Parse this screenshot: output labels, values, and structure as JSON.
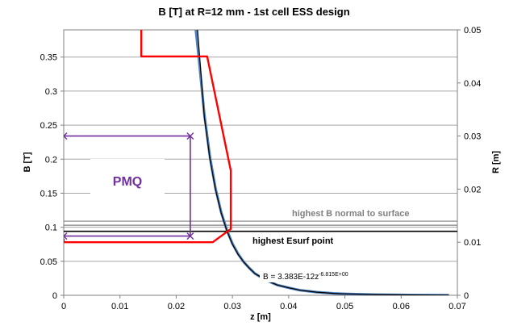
{
  "chart_data": {
    "type": "line",
    "title": "B [T] at R=12 mm - 1st cell ESS design",
    "xlabel": "z [m]",
    "ylabel": "B [T]",
    "y2label": "R [m]",
    "xlim": [
      0,
      0.07
    ],
    "ylim": [
      0,
      0.39
    ],
    "y2lim": [
      0,
      0.05
    ],
    "x_ticks": [
      "0",
      "0.01",
      "0.02",
      "0.03",
      "0.04",
      "0.05",
      "0.06",
      "0.07"
    ],
    "x_tick_values": [
      0,
      0.01,
      0.02,
      0.03,
      0.04,
      0.05,
      0.06,
      0.07
    ],
    "y_ticks": [
      "0",
      "0.05",
      "0.1",
      "0.15",
      "0.2",
      "0.25",
      "0.3",
      "0.35"
    ],
    "y_tick_values": [
      0,
      0.05,
      0.1,
      0.15,
      0.2,
      0.25,
      0.3,
      0.35
    ],
    "y2_ticks": [
      "0",
      "0.01",
      "0.02",
      "0.03",
      "0.04",
      "0.05"
    ],
    "y2_tick_values": [
      0,
      0.01,
      0.02,
      0.03,
      0.04,
      0.05
    ],
    "grid": "horizontal",
    "series": [
      {
        "role": "field",
        "axis": "left",
        "color": "#4f81bd",
        "x": [
          0.0235,
          0.024,
          0.025,
          0.026,
          0.027,
          0.028,
          0.029,
          0.03,
          0.031,
          0.032,
          0.033,
          0.034,
          0.035,
          0.036,
          0.038,
          0.04,
          0.042,
          0.045,
          0.048,
          0.05,
          0.055,
          0.06,
          0.065,
          0.0685
        ],
        "y": [
          0.39,
          0.351,
          0.266,
          0.203,
          0.157,
          0.122,
          0.096,
          0.076,
          0.061,
          0.049,
          0.04,
          0.032,
          0.027,
          0.022,
          0.015,
          0.011,
          0.0075,
          0.0046,
          0.0029,
          0.0021,
          0.0011,
          0.0006,
          0.0003,
          0.0002
        ]
      },
      {
        "role": "fit",
        "axis": "left",
        "color": "#000000",
        "x": [
          0.0238,
          0.025,
          0.026,
          0.027,
          0.028,
          0.029,
          0.03,
          0.031,
          0.032,
          0.033,
          0.034,
          0.035,
          0.036,
          0.038,
          0.04,
          0.042,
          0.045,
          0.048,
          0.05,
          0.055,
          0.06,
          0.065,
          0.0685
        ],
        "y": [
          0.39,
          0.262,
          0.2,
          0.155,
          0.121,
          0.095,
          0.075,
          0.06,
          0.049,
          0.04,
          0.032,
          0.027,
          0.022,
          0.015,
          0.011,
          0.0075,
          0.0046,
          0.0029,
          0.0021,
          0.0011,
          0.0006,
          0.0003,
          0.0002
        ]
      },
      {
        "role": "cavity profile",
        "axis": "right",
        "color": "#ff0000",
        "x": [
          0.0138,
          0.0138,
          0.0255,
          0.0297,
          0.0297,
          0.0265,
          0,
          0
        ],
        "y": [
          0.05,
          0.045,
          0.045,
          0.0235,
          0.0125,
          0.01,
          0.01,
          0.0107
        ]
      },
      {
        "role": "PMQ box",
        "axis": "left",
        "color": "#7030a0",
        "x": [
          0,
          0.0225,
          0.0225,
          0
        ],
        "y": [
          0.234,
          0.234,
          0.087,
          0.087
        ]
      }
    ],
    "hlines": [
      {
        "axis": "left",
        "y": 0.109,
        "color": "#808080"
      },
      {
        "axis": "left",
        "y": 0.103,
        "color": "#808080"
      },
      {
        "axis": "left",
        "y": 0.094,
        "color": "#000000"
      }
    ],
    "annotations": {
      "pmq": "PMQ",
      "highest_b": "highest B normal to surface",
      "highest_esurf": "highest Esurf point",
      "equation_base": "B = 3.383E-12z",
      "equation_exp": "-6.815E+00"
    }
  }
}
